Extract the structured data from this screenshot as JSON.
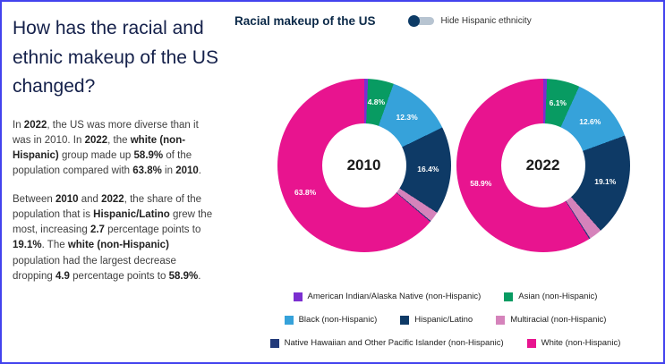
{
  "left_panel": {
    "heading": "How has the racial and ethnic makeup of the US changed?",
    "paragraphs": [
      {
        "segments": [
          {
            "text": "In ",
            "bold": false
          },
          {
            "text": "2022",
            "bold": true
          },
          {
            "text": ", the US was more diverse than it was in 2010. In ",
            "bold": false
          },
          {
            "text": "2022",
            "bold": true
          },
          {
            "text": ", the ",
            "bold": false
          },
          {
            "text": "white (non-Hispanic)",
            "bold": true
          },
          {
            "text": " group made up ",
            "bold": false
          },
          {
            "text": "58.9%",
            "bold": true
          },
          {
            "text": " of the population compared with ",
            "bold": false
          },
          {
            "text": "63.8%",
            "bold": true
          },
          {
            "text": " in ",
            "bold": false
          },
          {
            "text": "2010",
            "bold": true
          },
          {
            "text": ".",
            "bold": false
          }
        ]
      },
      {
        "segments": [
          {
            "text": "Between ",
            "bold": false
          },
          {
            "text": "2010",
            "bold": true
          },
          {
            "text": " and ",
            "bold": false
          },
          {
            "text": "2022",
            "bold": true
          },
          {
            "text": ", the share of the population that is ",
            "bold": false
          },
          {
            "text": "Hispanic/Latino",
            "bold": true
          },
          {
            "text": " grew the most, increasing ",
            "bold": false
          },
          {
            "text": "2.7",
            "bold": true
          },
          {
            "text": " percentage points to ",
            "bold": false
          },
          {
            "text": "19.1%",
            "bold": true
          },
          {
            "text": ". The ",
            "bold": false
          },
          {
            "text": "white (non-Hispanic)",
            "bold": true
          },
          {
            "text": " population had the largest decrease dropping ",
            "bold": false
          },
          {
            "text": "4.9",
            "bold": true
          },
          {
            "text": " percentage points to ",
            "bold": false
          },
          {
            "text": "58.9%",
            "bold": true
          },
          {
            "text": ".",
            "bold": false
          }
        ]
      }
    ]
  },
  "chart": {
    "title": "Racial makeup of the US",
    "toggle_label": "Hide Hispanic ethnicity"
  },
  "chart_data": {
    "type": "pie",
    "variant": "donut",
    "title": "Racial makeup of the US",
    "legend_position": "bottom",
    "categories": [
      "American Indian/Alaska Native (non-Hispanic)",
      "Asian (non-Hispanic)",
      "Black (non-Hispanic)",
      "Hispanic/Latino",
      "Multiracial (non-Hispanic)",
      "Native Hawaiian and Other Pacific Islander (non-Hispanic)",
      "White (non-Hispanic)"
    ],
    "colors": [
      "#7b2fd0",
      "#089b62",
      "#36a2da",
      "#0e3a66",
      "#d583bb",
      "#223a7a",
      "#e8148f"
    ],
    "legend_rows": [
      [
        0,
        1
      ],
      [
        2,
        3,
        4
      ],
      [
        5,
        6
      ]
    ],
    "charts": [
      {
        "label": "2010",
        "values": [
          0.7,
          4.8,
          12.3,
          16.4,
          1.9,
          0.2,
          63.8
        ],
        "slice_labels": [
          "",
          "4.8%",
          "12.3%",
          "16.4%",
          "",
          "",
          "63.8%"
        ]
      },
      {
        "label": "2022",
        "values": [
          0.7,
          6.1,
          12.6,
          19.1,
          2.4,
          0.2,
          58.9
        ],
        "slice_labels": [
          "",
          "6.1%",
          "12.6%",
          "19.1%",
          "",
          "",
          "58.9%"
        ]
      }
    ]
  }
}
